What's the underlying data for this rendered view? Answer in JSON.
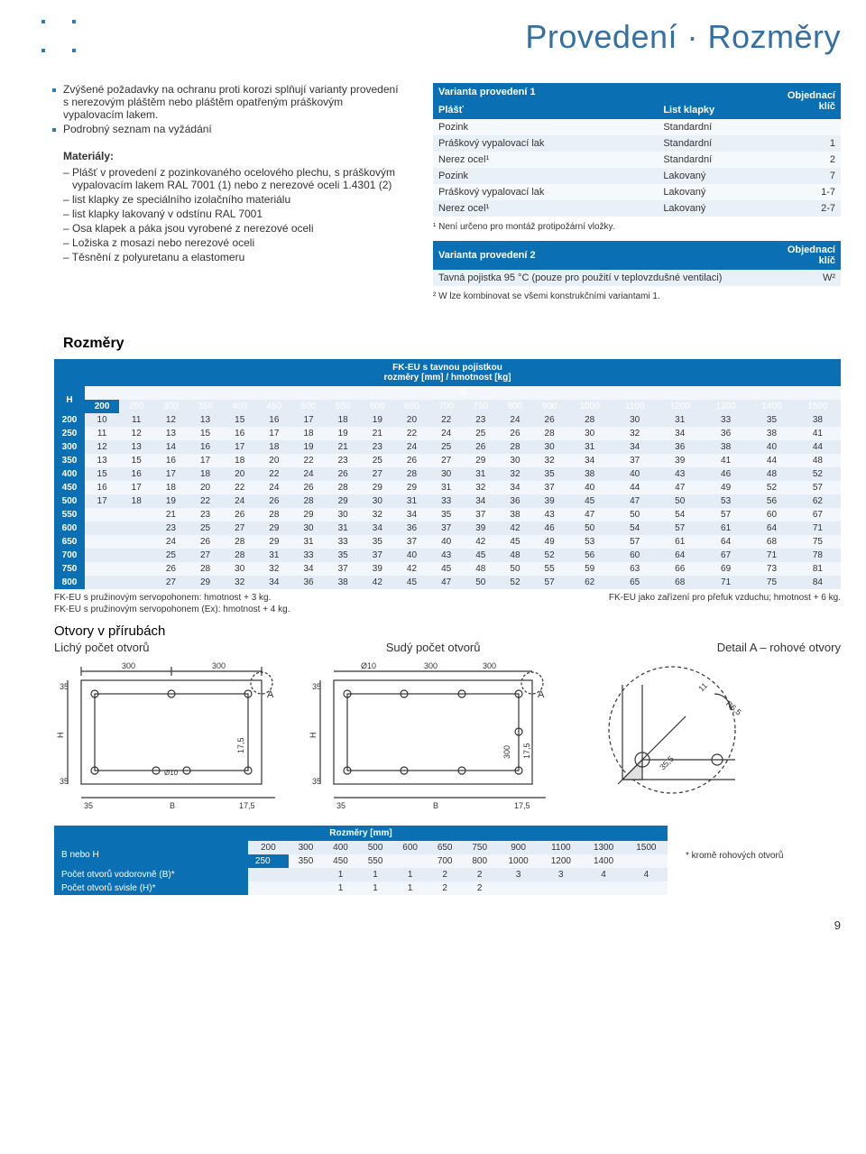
{
  "title": "Provedení · Rozměry",
  "intro": {
    "line1": "Zvýšené požadavky na ochranu proti korozi splňují varianty provedení s nerezovým pláštěm nebo pláštěm opatřeným práškovým vypalovacím lakem.",
    "line2": "Podrobný seznam na vyžádání"
  },
  "materials": {
    "heading": "Materiály:",
    "items": [
      "Plášť v provedení z pozinkovaného ocelového plechu, s práškovým vypalovacím lakem RAL 7001 (1) nebo z nerezové oceli 1.4301 (2)",
      "list klapky ze speciálního izolačního materiálu",
      "list klapky lakovaný v odstínu RAL 7001",
      "Osa klapek a páka jsou vyrobené z nerezové oceli",
      "Ložiska z mosazi nebo nerezové oceli",
      "Těsnění z polyuretanu a elastomeru"
    ]
  },
  "variant1": {
    "title": "Varianta provedení 1",
    "col_plast": "Plášť",
    "col_list": "List klapky",
    "col_key": "Objednací klíč",
    "rows": [
      {
        "c1": "Pozink",
        "c2": "Standardní",
        "c3": ""
      },
      {
        "c1": "Práškový vypalovací lak",
        "c2": "Standardní",
        "c3": "1"
      },
      {
        "c1": "Nerez ocel¹",
        "c2": "Standardní",
        "c3": "2"
      },
      {
        "c1": "Pozink",
        "c2": "Lakovaný",
        "c3": "7"
      },
      {
        "c1": "Práškový vypalovací lak",
        "c2": "Lakovaný",
        "c3": "1-7"
      },
      {
        "c1": "Nerez ocel¹",
        "c2": "Lakovaný",
        "c3": "2-7"
      }
    ],
    "footnote": "¹ Není určeno pro montáž protipožární vložky."
  },
  "variant2": {
    "title": "Varianta provedení 2",
    "col_key": "Objednací klíč",
    "row": {
      "c1": "Tavná pojistka 95 °C (pouze pro použití v teplovzdušné ventilaci)",
      "c3": "W²"
    },
    "footnote": "² W lze kombinovat se všemi konstrukčními variantami 1."
  },
  "rozmery": {
    "heading": "Rozměry",
    "caption1": "FK-EU s tavnou pojistkou",
    "caption2": "rozměry [mm] / hmotnost [kg]",
    "row_label": "H",
    "col_label": "B",
    "cols": [
      "200",
      "250",
      "300",
      "350",
      "400",
      "450",
      "500",
      "550",
      "600",
      "650",
      "700",
      "750",
      "800",
      "900",
      "1000",
      "1100",
      "1200",
      "1300",
      "1400",
      "1500"
    ],
    "rows": [
      {
        "h": "200",
        "v": [
          "10",
          "11",
          "12",
          "13",
          "15",
          "16",
          "17",
          "18",
          "19",
          "20",
          "22",
          "23",
          "24",
          "26",
          "28",
          "30",
          "31",
          "33",
          "35",
          "38"
        ]
      },
      {
        "h": "250",
        "v": [
          "11",
          "12",
          "13",
          "15",
          "16",
          "17",
          "18",
          "19",
          "21",
          "22",
          "24",
          "25",
          "26",
          "28",
          "30",
          "32",
          "34",
          "36",
          "38",
          "41"
        ]
      },
      {
        "h": "300",
        "v": [
          "12",
          "13",
          "14",
          "16",
          "17",
          "18",
          "19",
          "21",
          "23",
          "24",
          "25",
          "26",
          "28",
          "30",
          "31",
          "34",
          "36",
          "38",
          "40",
          "44"
        ]
      },
      {
        "h": "350",
        "v": [
          "13",
          "15",
          "16",
          "17",
          "18",
          "20",
          "22",
          "23",
          "25",
          "26",
          "27",
          "29",
          "30",
          "32",
          "34",
          "37",
          "39",
          "41",
          "44",
          "48"
        ]
      },
      {
        "h": "400",
        "v": [
          "15",
          "16",
          "17",
          "18",
          "20",
          "22",
          "24",
          "26",
          "27",
          "28",
          "30",
          "31",
          "32",
          "35",
          "38",
          "40",
          "43",
          "46",
          "48",
          "52"
        ]
      },
      {
        "h": "450",
        "v": [
          "16",
          "17",
          "18",
          "20",
          "22",
          "24",
          "26",
          "28",
          "29",
          "29",
          "31",
          "32",
          "34",
          "37",
          "40",
          "44",
          "47",
          "49",
          "52",
          "57"
        ]
      },
      {
        "h": "500",
        "v": [
          "17",
          "18",
          "19",
          "22",
          "24",
          "26",
          "28",
          "29",
          "30",
          "31",
          "33",
          "34",
          "36",
          "39",
          "45",
          "47",
          "50",
          "53",
          "56",
          "62"
        ]
      },
      {
        "h": "550",
        "v": [
          "",
          "",
          "21",
          "23",
          "26",
          "28",
          "29",
          "30",
          "32",
          "34",
          "35",
          "37",
          "38",
          "43",
          "47",
          "50",
          "54",
          "57",
          "60",
          "67"
        ]
      },
      {
        "h": "600",
        "v": [
          "",
          "",
          "23",
          "25",
          "27",
          "29",
          "30",
          "31",
          "34",
          "36",
          "37",
          "39",
          "42",
          "46",
          "50",
          "54",
          "57",
          "61",
          "64",
          "71"
        ]
      },
      {
        "h": "650",
        "v": [
          "",
          "",
          "24",
          "26",
          "28",
          "29",
          "31",
          "33",
          "35",
          "37",
          "40",
          "42",
          "45",
          "49",
          "53",
          "57",
          "61",
          "64",
          "68",
          "75"
        ]
      },
      {
        "h": "700",
        "v": [
          "",
          "",
          "25",
          "27",
          "28",
          "31",
          "33",
          "35",
          "37",
          "40",
          "43",
          "45",
          "48",
          "52",
          "56",
          "60",
          "64",
          "67",
          "71",
          "78"
        ]
      },
      {
        "h": "750",
        "v": [
          "",
          "",
          "26",
          "28",
          "30",
          "32",
          "34",
          "37",
          "39",
          "42",
          "45",
          "48",
          "50",
          "55",
          "59",
          "63",
          "66",
          "69",
          "73",
          "81"
        ]
      },
      {
        "h": "800",
        "v": [
          "",
          "",
          "27",
          "29",
          "32",
          "34",
          "36",
          "38",
          "42",
          "45",
          "47",
          "50",
          "52",
          "57",
          "62",
          "65",
          "68",
          "71",
          "75",
          "84"
        ]
      }
    ],
    "note_left1": "FK-EU s pružinovým servopohonem: hmotnost + 3 kg.",
    "note_left2": "FK-EU s pružinovým servopohonem (Ex): hmotnost + 4 kg.",
    "note_right": "FK-EU jako zařízení pro přefuk vzduchu; hmotnost + 6 kg."
  },
  "otvor": {
    "heading": "Otvory v přírubách",
    "sub1": "Lichý počet otvorů",
    "sub2": "Sudý počet otvorů",
    "sub3": "Detail A – rohové otvory"
  },
  "holes_table": {
    "title": "Rozměry [mm]",
    "lbl_bh": "B nebo H",
    "row_top": [
      "200",
      "300",
      "400",
      "500",
      "600",
      "650",
      "750",
      "900",
      "1100",
      "1300",
      "1500"
    ],
    "row_bot": [
      "250",
      "350",
      "450",
      "550",
      "",
      "700",
      "800",
      "1000",
      "1200",
      "1400",
      ""
    ],
    "row1_lbl": "Počet otvorů vodorovně (B)*",
    "row1": [
      "",
      "",
      "1",
      "1",
      "1",
      "2",
      "2",
      "3",
      "3",
      "4",
      "4"
    ],
    "row2_lbl": "Počet otvorů svisle (H)*",
    "row2": [
      "",
      "",
      "1",
      "1",
      "1",
      "2",
      "2",
      "",
      "",
      "",
      ""
    ],
    "side_note": "* kromě rohových otvorů"
  },
  "page": "9",
  "colors": {
    "blue": "#0b6fb3",
    "lightblue": "#e4edf5"
  }
}
